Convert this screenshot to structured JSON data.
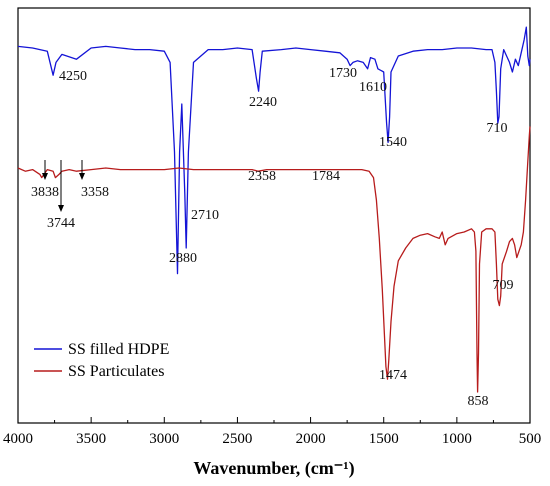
{
  "chart_data": {
    "type": "line",
    "title": "",
    "xlabel": "Wavenumber, (cm⁻¹)",
    "ylabel": "",
    "xlim": [
      4000,
      500
    ],
    "x_reversed": true,
    "x_ticks": [
      "4000",
      "3500",
      "3000",
      "2500",
      "2000",
      "1500",
      "1000",
      "500"
    ],
    "grid": false,
    "legend": "bottom-left",
    "series": [
      {
        "name": "SS filled HDPE",
        "color": "#1414d6",
        "points": [
          [
            4000,
            0.12
          ],
          [
            3900,
            0.125
          ],
          [
            3800,
            0.135
          ],
          [
            3760,
            0.21
          ],
          [
            3740,
            0.17
          ],
          [
            3700,
            0.145
          ],
          [
            3600,
            0.16
          ],
          [
            3500,
            0.125
          ],
          [
            3400,
            0.12
          ],
          [
            3300,
            0.125
          ],
          [
            3200,
            0.13
          ],
          [
            3100,
            0.13
          ],
          [
            3000,
            0.135
          ],
          [
            2960,
            0.17
          ],
          [
            2930,
            0.45
          ],
          [
            2910,
            0.83
          ],
          [
            2895,
            0.45
          ],
          [
            2880,
            0.3
          ],
          [
            2860,
            0.58
          ],
          [
            2850,
            0.75
          ],
          [
            2835,
            0.45
          ],
          [
            2800,
            0.17
          ],
          [
            2700,
            0.13
          ],
          [
            2600,
            0.13
          ],
          [
            2500,
            0.125
          ],
          [
            2400,
            0.13
          ],
          [
            2370,
            0.22
          ],
          [
            2355,
            0.26
          ],
          [
            2345,
            0.2
          ],
          [
            2330,
            0.135
          ],
          [
            2200,
            0.13
          ],
          [
            2100,
            0.125
          ],
          [
            2000,
            0.13
          ],
          [
            1900,
            0.135
          ],
          [
            1800,
            0.14
          ],
          [
            1750,
            0.16
          ],
          [
            1730,
            0.18
          ],
          [
            1710,
            0.17
          ],
          [
            1680,
            0.165
          ],
          [
            1640,
            0.17
          ],
          [
            1610,
            0.19
          ],
          [
            1590,
            0.155
          ],
          [
            1560,
            0.16
          ],
          [
            1540,
            0.19
          ],
          [
            1500,
            0.2
          ],
          [
            1480,
            0.36
          ],
          [
            1470,
            0.42
          ],
          [
            1460,
            0.34
          ],
          [
            1450,
            0.2
          ],
          [
            1400,
            0.15
          ],
          [
            1300,
            0.135
          ],
          [
            1200,
            0.13
          ],
          [
            1100,
            0.13
          ],
          [
            1000,
            0.125
          ],
          [
            900,
            0.125
          ],
          [
            800,
            0.13
          ],
          [
            760,
            0.13
          ],
          [
            740,
            0.17
          ],
          [
            730,
            0.26
          ],
          [
            720,
            0.36
          ],
          [
            712,
            0.34
          ],
          [
            700,
            0.19
          ],
          [
            680,
            0.13
          ],
          [
            640,
            0.17
          ],
          [
            620,
            0.2
          ],
          [
            600,
            0.16
          ],
          [
            580,
            0.18
          ],
          [
            560,
            0.14
          ],
          [
            540,
            0.1
          ],
          [
            525,
            0.06
          ],
          [
            515,
            0.15
          ],
          [
            505,
            0.18
          ],
          [
            500,
            0.16
          ]
        ]
      },
      {
        "name": "SS Particulates",
        "color": "#b71c1c",
        "points": [
          [
            4000,
            0.5
          ],
          [
            3950,
            0.51
          ],
          [
            3900,
            0.505
          ],
          [
            3850,
            0.52
          ],
          [
            3838,
            0.53
          ],
          [
            3800,
            0.505
          ],
          [
            3760,
            0.51
          ],
          [
            3744,
            0.53
          ],
          [
            3720,
            0.52
          ],
          [
            3700,
            0.51
          ],
          [
            3650,
            0.505
          ],
          [
            3600,
            0.51
          ],
          [
            3500,
            0.505
          ],
          [
            3400,
            0.5
          ],
          [
            3300,
            0.505
          ],
          [
            3200,
            0.505
          ],
          [
            3100,
            0.505
          ],
          [
            3000,
            0.505
          ],
          [
            2900,
            0.5
          ],
          [
            2800,
            0.505
          ],
          [
            2700,
            0.505
          ],
          [
            2600,
            0.505
          ],
          [
            2500,
            0.505
          ],
          [
            2400,
            0.505
          ],
          [
            2358,
            0.51
          ],
          [
            2300,
            0.505
          ],
          [
            2200,
            0.505
          ],
          [
            2100,
            0.505
          ],
          [
            2000,
            0.505
          ],
          [
            1900,
            0.505
          ],
          [
            1800,
            0.505
          ],
          [
            1750,
            0.505
          ],
          [
            1700,
            0.505
          ],
          [
            1650,
            0.505
          ],
          [
            1600,
            0.51
          ],
          [
            1570,
            0.53
          ],
          [
            1550,
            0.6
          ],
          [
            1530,
            0.72
          ],
          [
            1510,
            0.88
          ],
          [
            1495,
            1.02
          ],
          [
            1485,
            1.12
          ],
          [
            1474,
            1.16
          ],
          [
            1465,
            1.1
          ],
          [
            1450,
            0.98
          ],
          [
            1430,
            0.87
          ],
          [
            1400,
            0.79
          ],
          [
            1350,
            0.75
          ],
          [
            1300,
            0.72
          ],
          [
            1250,
            0.71
          ],
          [
            1200,
            0.705
          ],
          [
            1150,
            0.715
          ],
          [
            1120,
            0.72
          ],
          [
            1100,
            0.7
          ],
          [
            1080,
            0.74
          ],
          [
            1060,
            0.72
          ],
          [
            1000,
            0.705
          ],
          [
            950,
            0.7
          ],
          [
            900,
            0.69
          ],
          [
            880,
            0.7
          ],
          [
            870,
            0.76
          ],
          [
            862,
            1.08
          ],
          [
            858,
            1.2
          ],
          [
            852,
            1.08
          ],
          [
            845,
            0.8
          ],
          [
            830,
            0.7
          ],
          [
            800,
            0.69
          ],
          [
            760,
            0.69
          ],
          [
            740,
            0.7
          ],
          [
            730,
            0.8
          ],
          [
            720,
            0.91
          ],
          [
            709,
            0.93
          ],
          [
            700,
            0.9
          ],
          [
            690,
            0.8
          ],
          [
            660,
            0.76
          ],
          [
            640,
            0.73
          ],
          [
            620,
            0.72
          ],
          [
            605,
            0.74
          ],
          [
            590,
            0.78
          ],
          [
            575,
            0.76
          ],
          [
            560,
            0.74
          ],
          [
            545,
            0.7
          ],
          [
            530,
            0.6
          ],
          [
            515,
            0.48
          ],
          [
            505,
            0.4
          ],
          [
            500,
            0.37
          ]
        ]
      }
    ],
    "annotations": [
      {
        "text": "4250",
        "x": 3700,
        "series": "SS filled HDPE"
      },
      {
        "text": "2880",
        "x": 2880,
        "series": "SS filled HDPE"
      },
      {
        "text": "2710",
        "x": 2830,
        "series": "SS filled HDPE"
      },
      {
        "text": "2240",
        "x": 2360,
        "series": "SS filled HDPE"
      },
      {
        "text": "1730",
        "x": 1735,
        "series": "SS filled HDPE"
      },
      {
        "text": "1610",
        "x": 1615,
        "series": "SS filled HDPE"
      },
      {
        "text": "1540",
        "x": 1480,
        "series": "SS filled HDPE"
      },
      {
        "text": "710",
        "x": 715,
        "series": "SS filled HDPE"
      },
      {
        "text": "3838",
        "x": 3838,
        "series": "SS Particulates"
      },
      {
        "text": "3744",
        "x": 3744,
        "series": "SS Particulates"
      },
      {
        "text": "3358",
        "x": 3650,
        "series": "SS Particulates"
      },
      {
        "text": "2358",
        "x": 2358,
        "series": "SS Particulates"
      },
      {
        "text": "1784",
        "x": 1784,
        "series": "SS Particulates"
      },
      {
        "text": "1474",
        "x": 1474,
        "series": "SS Particulates"
      },
      {
        "text": "858",
        "x": 858,
        "series": "SS Particulates"
      },
      {
        "text": "709",
        "x": 709,
        "series": "SS Particulates"
      }
    ]
  }
}
